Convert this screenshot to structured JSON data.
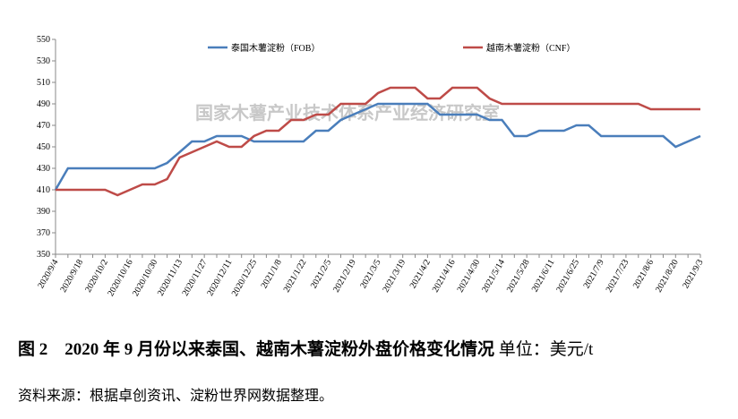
{
  "chart_data": {
    "type": "line",
    "categories": [
      "2020/9/4",
      null,
      "2020/9/18",
      null,
      "2020/10/2",
      null,
      "2020/10/16",
      null,
      "2020/10/30",
      null,
      "2020/11/13",
      null,
      "2020/11/27",
      null,
      "2020/12/11",
      null,
      "2020/12/25",
      null,
      "2021/1/8",
      null,
      "2021/1/22",
      null,
      "2021/2/5",
      null,
      "2021/2/19",
      null,
      "2021/3/5",
      null,
      "2021/3/19",
      null,
      "2021/4/2",
      null,
      "2021/4/16",
      null,
      "2021/4/30",
      null,
      "2021/5/14",
      null,
      "2021/5/28",
      null,
      "2021/6/11",
      null,
      "2021/6/25",
      null,
      "2021/7/9",
      null,
      "2021/7/23",
      null,
      "2021/8/6",
      null,
      "2021/8/20",
      null,
      "2021/9/3"
    ],
    "series": [
      {
        "name": "泰国木薯淀粉（FOB）",
        "color": "#4a7ebb",
        "values": [
          410,
          430,
          430,
          430,
          430,
          430,
          430,
          430,
          430,
          435,
          445,
          455,
          455,
          460,
          460,
          460,
          455,
          455,
          455,
          455,
          455,
          465,
          465,
          475,
          480,
          485,
          490,
          490,
          490,
          490,
          490,
          480,
          480,
          480,
          480,
          475,
          475,
          460,
          460,
          465,
          465,
          465,
          470,
          470,
          460,
          460,
          460,
          460,
          460,
          460,
          450,
          455,
          460
        ]
      },
      {
        "name": "越南木薯淀粉（CNF）",
        "color": "#be4b48",
        "values": [
          410,
          410,
          410,
          410,
          410,
          405,
          410,
          415,
          415,
          420,
          440,
          445,
          450,
          455,
          450,
          450,
          460,
          465,
          465,
          475,
          475,
          480,
          480,
          490,
          490,
          490,
          500,
          505,
          505,
          505,
          495,
          495,
          505,
          505,
          505,
          495,
          490,
          490,
          490,
          490,
          490,
          490,
          490,
          490,
          490,
          490,
          490,
          490,
          485,
          485,
          485,
          485,
          485
        ]
      }
    ],
    "ylim": [
      350,
      550
    ],
    "yticks": [
      350,
      370,
      390,
      410,
      430,
      450,
      470,
      490,
      510,
      530,
      550
    ],
    "watermark": "国家木薯产业技术体系产业经济研究室",
    "legend": "top"
  },
  "caption": {
    "title": "图 2　2020 年 9 月份以来泰国、越南木薯淀粉外盘价格变化情况",
    "unit": "单位：美元/t",
    "source": "资料来源：根据卓创资讯、淀粉世界网数据整理。"
  }
}
